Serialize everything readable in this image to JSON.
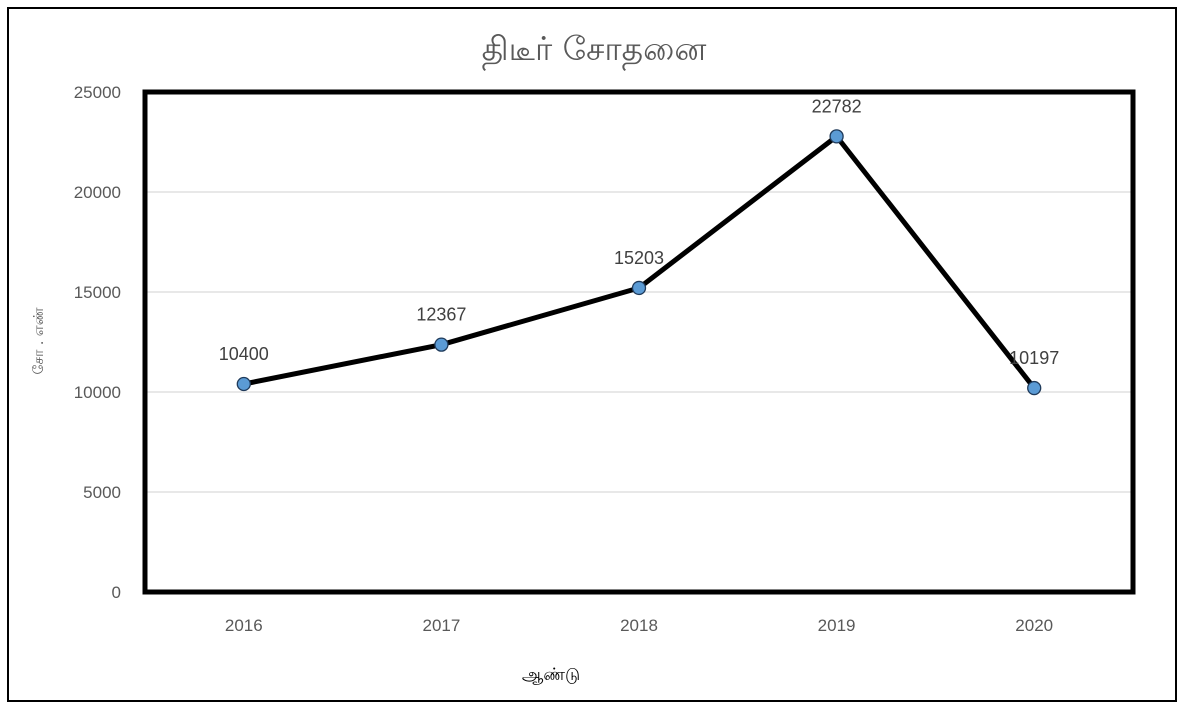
{
  "chart_data": {
    "type": "line",
    "title": "திடீர் சோதனை",
    "xlabel": "ஆண்டு",
    "ylabel": "சோ . எண்",
    "categories": [
      "2016",
      "2017",
      "2018",
      "2019",
      "2020"
    ],
    "series": [
      {
        "values": [
          10400,
          12367,
          15203,
          22782,
          10197
        ]
      }
    ],
    "ylim": [
      0,
      25000
    ],
    "yticks": [
      "0",
      "5000",
      "10000",
      "15000",
      "20000",
      "25000"
    ],
    "data_labels": [
      "10400",
      "12367",
      "15203",
      "22782",
      "10197"
    ],
    "grid": true,
    "legend": "none",
    "colors": {
      "line": "#000000",
      "marker": "#5b9bd5",
      "grid": "#d9d9d9"
    }
  }
}
